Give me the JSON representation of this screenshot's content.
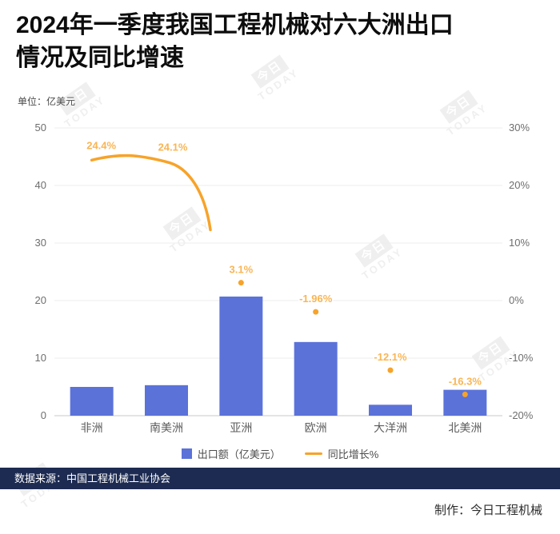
{
  "header": {
    "title_line1": "2024年一季度我国工程机械对六大洲出口",
    "title_line2": "情况及同比增速",
    "unit_label": "单位：亿美元"
  },
  "chart_data": {
    "type": "bar",
    "categories": [
      "非洲",
      "南美洲",
      "亚洲",
      "欧洲",
      "大洋洲",
      "北美洲"
    ],
    "series": [
      {
        "name": "出口额（亿美元）",
        "type": "bar",
        "values": [
          5.0,
          5.3,
          20.7,
          12.8,
          1.9,
          4.5
        ],
        "color": "#5b72d9"
      },
      {
        "name": "同比增长%",
        "type": "line",
        "values": [
          24.4,
          24.1,
          3.1,
          -1.96,
          -12.1,
          -16.3
        ],
        "labels": [
          "24.4%",
          "24.1%",
          "3.1%",
          "-1.96%",
          "-12.1%",
          "-16.3%"
        ],
        "color": "#f7a329"
      }
    ],
    "left_axis": {
      "min": 0,
      "max": 50,
      "ticks": [
        0,
        10,
        20,
        30,
        40,
        50
      ]
    },
    "right_axis": {
      "min": -20,
      "max": 30,
      "tick_labels": [
        "-20%",
        "-10%",
        "0%",
        "10%",
        "20%",
        "30%"
      ]
    },
    "grid": true,
    "legend_position": "bottom"
  },
  "legend": {
    "bar_label": "出口额（亿美元）",
    "line_label": "同比增长%"
  },
  "footer": {
    "source": "数据来源：中国工程机械工业协会",
    "credit": "制作：今日工程机械"
  },
  "watermark": {
    "text_cn": "今日",
    "text_en": "TODAY"
  }
}
